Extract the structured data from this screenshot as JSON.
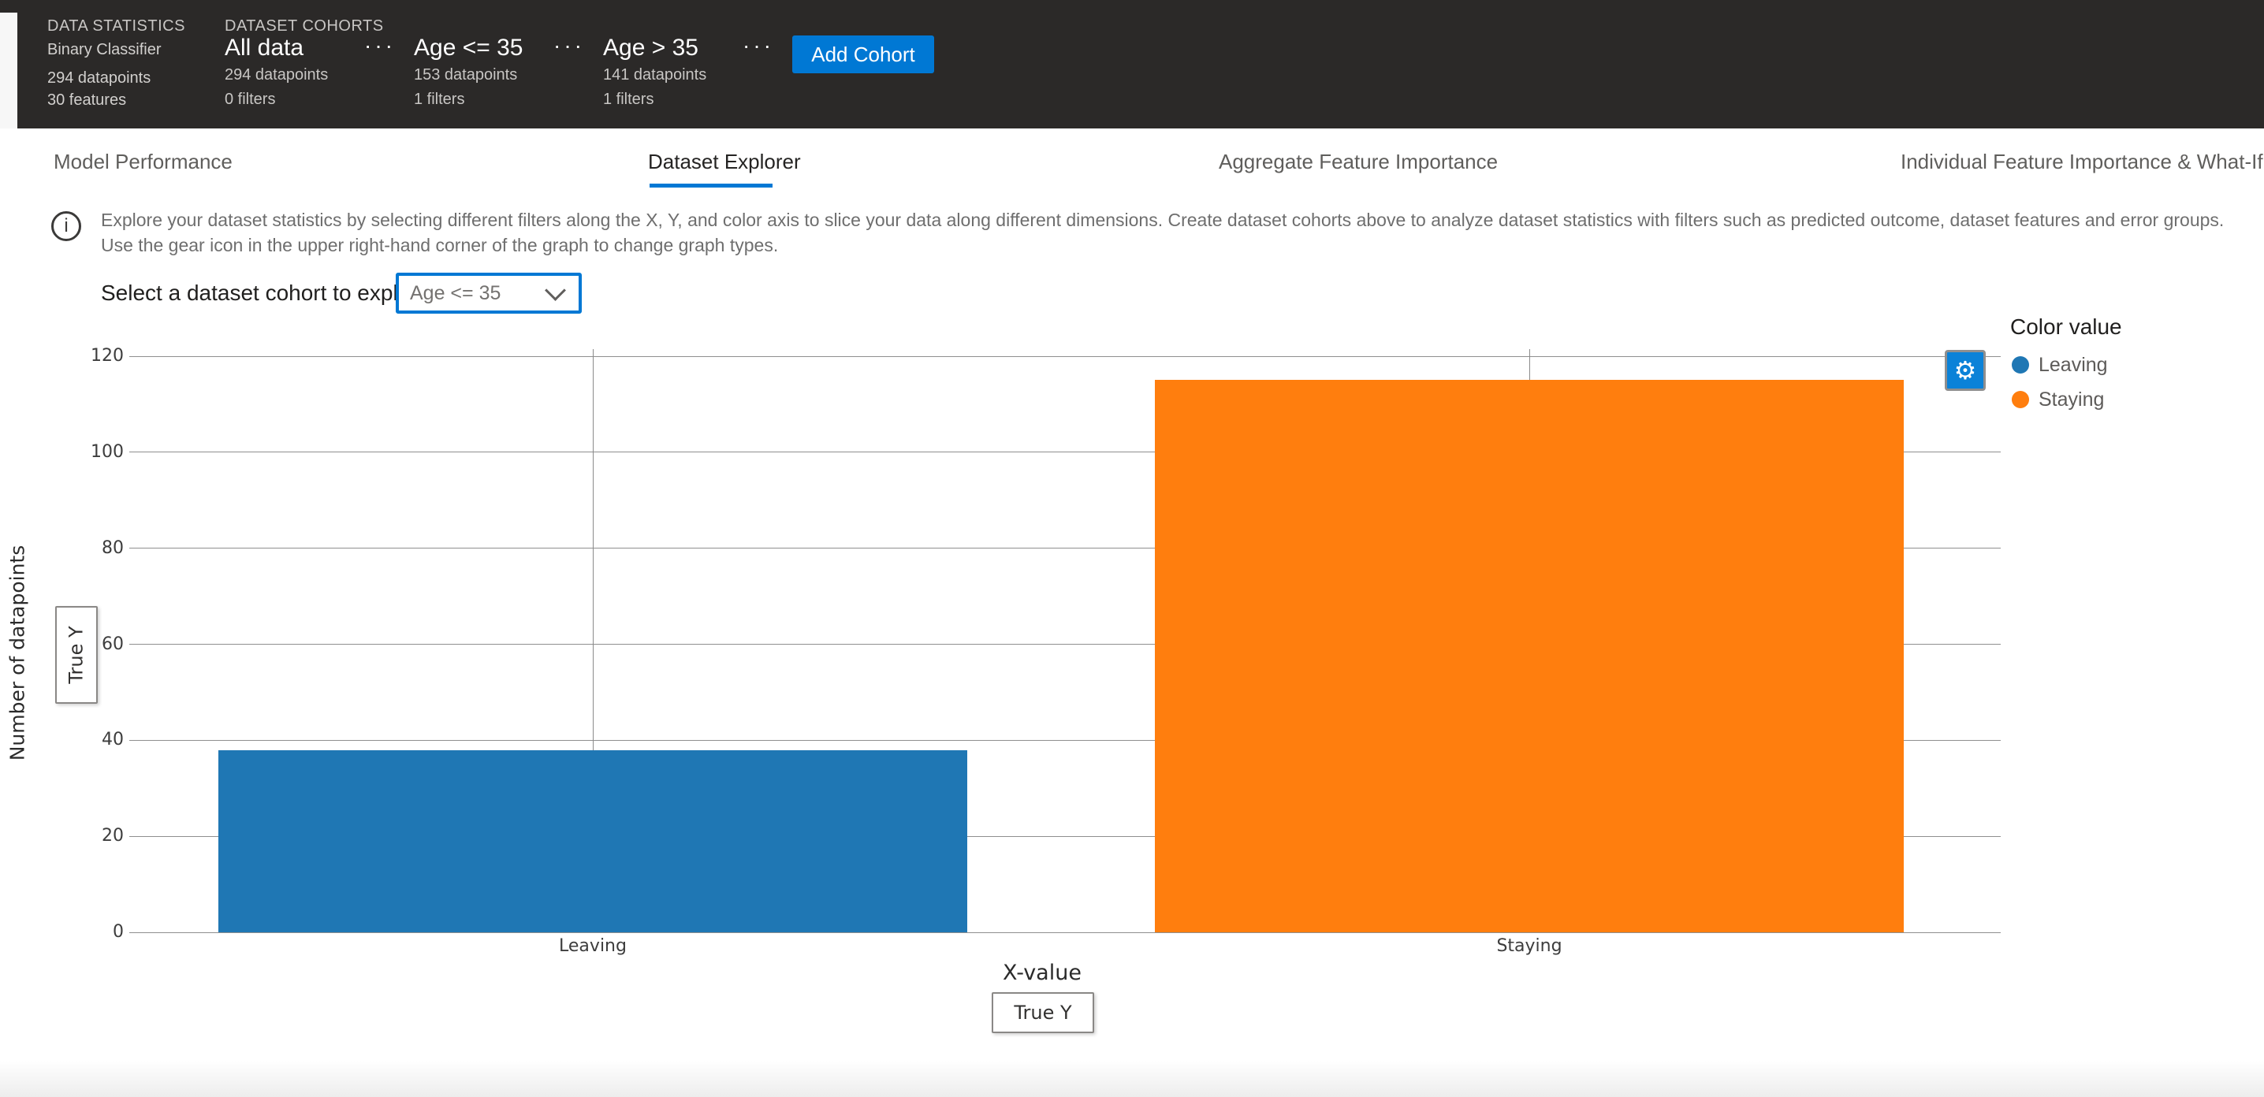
{
  "icons": {
    "gear-icon": "⚙",
    "info-icon": "i",
    "more-icon": "···"
  },
  "header": {
    "data_statistics": {
      "label": "DATA STATISTICS",
      "model_type": "Binary Classifier",
      "datapoints": "294 datapoints",
      "features": "30 features"
    },
    "dataset_cohorts": {
      "label": "DATASET COHORTS",
      "cohorts": [
        {
          "name": "All data",
          "datapoints": "294 datapoints",
          "filters": "0 filters"
        },
        {
          "name": "Age <= 35",
          "datapoints": "153 datapoints",
          "filters": "1 filters"
        },
        {
          "name": "Age > 35",
          "datapoints": "141 datapoints",
          "filters": "1 filters"
        }
      ],
      "add_cohort_label": "Add Cohort"
    }
  },
  "tabs": [
    {
      "label": "Model Performance",
      "active": false
    },
    {
      "label": "Dataset Explorer",
      "active": true
    },
    {
      "label": "Aggregate Feature Importance",
      "active": false
    },
    {
      "label": "Individual Feature Importance & What-If",
      "active": false
    }
  ],
  "info": {
    "line1": "Explore your dataset statistics by selecting different filters along the X, Y, and color axis to slice your data along different dimensions. Create dataset cohorts above to analyze dataset statistics with filters such as predicted outcome, dataset features and error groups.",
    "line2": "Use the gear icon in the upper right-hand corner of the graph to change graph types."
  },
  "cohort_selector": {
    "label": "Select a dataset cohort to explore",
    "value": "Age <= 35"
  },
  "colors": {
    "accent_blue": "#0078d4",
    "bar_blue": "#1f77b4",
    "bar_orange": "#ff7e0e",
    "header_bg": "#2b2928"
  },
  "chart_data": {
    "type": "bar",
    "categories": [
      "Leaving",
      "Staying"
    ],
    "values": [
      38,
      115
    ],
    "series": [
      {
        "name": "Leaving",
        "color": "#1f77b4",
        "values": [
          38
        ]
      },
      {
        "name": "Staying",
        "color": "#ff7e0e",
        "values": [
          115
        ]
      }
    ],
    "title": "",
    "xlabel": "X-value",
    "ylabel": "Number of datapoints",
    "ylim": [
      0,
      120
    ],
    "yticks": [
      0,
      20,
      40,
      60,
      80,
      100,
      120
    ],
    "grid": true,
    "legend_position": "right",
    "legend_title": "Color value",
    "legend": [
      {
        "label": "Leaving",
        "color": "#1f77b4"
      },
      {
        "label": "Staying",
        "color": "#ff7e0e"
      }
    ],
    "x_axis_selector_value": "True Y",
    "y_axis_selector_value": "True Y"
  }
}
